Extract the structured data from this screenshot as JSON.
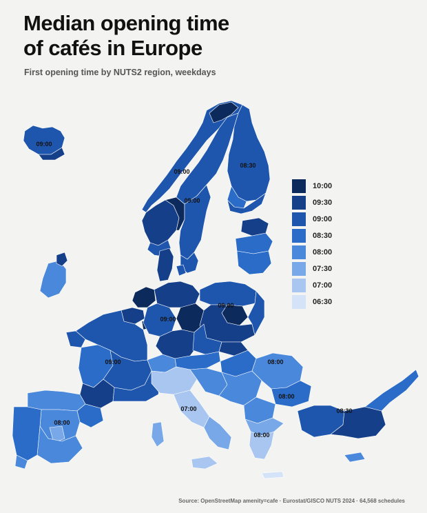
{
  "title_line1": "Median opening time",
  "title_line2": "of cafés in Europe",
  "subtitle": "First opening time by NUTS2 region, weekdays",
  "source": "Source: OpenStreetMap amenity=cafe · Eurostat/GISCO NUTS 2024 · 64,568 schedules",
  "legend": [
    {
      "label": "10:00",
      "color": "#0d2a5c"
    },
    {
      "label": "09:30",
      "color": "#163f8a"
    },
    {
      "label": "09:00",
      "color": "#1f56ad"
    },
    {
      "label": "08:30",
      "color": "#2a6cc8"
    },
    {
      "label": "08:00",
      "color": "#4a88dc"
    },
    {
      "label": "07:30",
      "color": "#79a8e8"
    },
    {
      "label": "07:00",
      "color": "#a8c6f0"
    },
    {
      "label": "06:30",
      "color": "#d4e3f8"
    }
  ],
  "map_labels": {
    "iceland": "09:00",
    "norway_north": "09:00",
    "finland": "08:30",
    "norway_south": "09:00",
    "poland": "09:00",
    "germany": "09:00",
    "france": "09:00",
    "balkans": "08:00",
    "romania_south": "08:00",
    "turkey": "08:30",
    "spain": "08:00",
    "italy": "07:00",
    "greece": "08:00"
  }
}
